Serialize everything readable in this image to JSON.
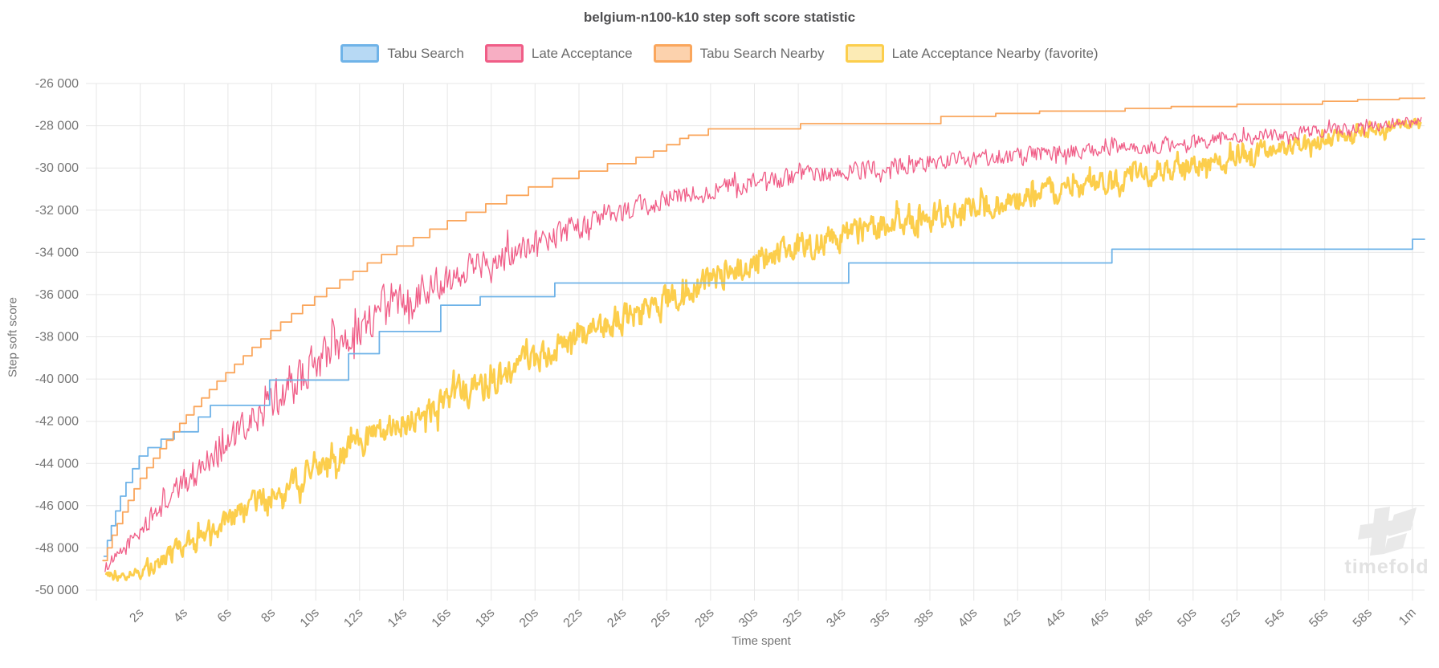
{
  "watermark": {
    "text": "timefold",
    "glyph_color": "#e9e9e9",
    "text_color": "#e2e2e2"
  },
  "chart_data": {
    "type": "line",
    "title": "belgium-n100-k10 step soft score statistic",
    "grid_color": "#e7e7e7",
    "tick_text_color": "#767676",
    "title_color": "#4f4f51",
    "background": "#ffffff",
    "legend_position": "top",
    "x_axis": {
      "title": "Time spent",
      "unit": "seconds",
      "min": 0,
      "max": 60.55,
      "ticks": [
        {
          "t": 0,
          "label": ""
        },
        {
          "t": 2,
          "label": "2s"
        },
        {
          "t": 4,
          "label": "4s"
        },
        {
          "t": 6,
          "label": "6s"
        },
        {
          "t": 8,
          "label": "8s"
        },
        {
          "t": 10,
          "label": "10s"
        },
        {
          "t": 12,
          "label": "12s"
        },
        {
          "t": 14,
          "label": "14s"
        },
        {
          "t": 16,
          "label": "16s"
        },
        {
          "t": 18,
          "label": "18s"
        },
        {
          "t": 20,
          "label": "20s"
        },
        {
          "t": 22,
          "label": "22s"
        },
        {
          "t": 24,
          "label": "24s"
        },
        {
          "t": 26,
          "label": "26s"
        },
        {
          "t": 28,
          "label": "28s"
        },
        {
          "t": 30,
          "label": "30s"
        },
        {
          "t": 32,
          "label": "32s"
        },
        {
          "t": 34,
          "label": "34s"
        },
        {
          "t": 36,
          "label": "36s"
        },
        {
          "t": 38,
          "label": "38s"
        },
        {
          "t": 40,
          "label": "40s"
        },
        {
          "t": 42,
          "label": "42s"
        },
        {
          "t": 44,
          "label": "44s"
        },
        {
          "t": 46,
          "label": "46s"
        },
        {
          "t": 48,
          "label": "48s"
        },
        {
          "t": 50,
          "label": "50s"
        },
        {
          "t": 52,
          "label": "52s"
        },
        {
          "t": 54,
          "label": "54s"
        },
        {
          "t": 56,
          "label": "56s"
        },
        {
          "t": 58,
          "label": "58s"
        },
        {
          "t": 60,
          "label": "1m"
        }
      ]
    },
    "y_axis": {
      "title": "Step soft score",
      "min": -50000,
      "max": -26000,
      "ticks": [
        {
          "value": -26000,
          "label": "-26 000"
        },
        {
          "value": -28000,
          "label": "-28 000"
        },
        {
          "value": -30000,
          "label": "-30 000"
        },
        {
          "value": -32000,
          "label": "-32 000"
        },
        {
          "value": -34000,
          "label": "-34 000"
        },
        {
          "value": -36000,
          "label": "-36 000"
        },
        {
          "value": -38000,
          "label": "-38 000"
        },
        {
          "value": -40000,
          "label": "-40 000"
        },
        {
          "value": -42000,
          "label": "-42 000"
        },
        {
          "value": -44000,
          "label": "-44 000"
        },
        {
          "value": -46000,
          "label": "-46 000"
        },
        {
          "value": -48000,
          "label": "-48 000"
        },
        {
          "value": -50000,
          "label": "-50 000"
        }
      ]
    },
    "series": [
      {
        "name": "Tabu Search",
        "type": "step",
        "z": 3,
        "color": "#6fb3e8",
        "fill_color": "#b7d9f4",
        "line_width": 1.8,
        "points": [
          [
            0.35,
            -48400
          ],
          [
            0.5,
            -47650
          ],
          [
            0.68,
            -46950
          ],
          [
            0.88,
            -46250
          ],
          [
            1.1,
            -45550
          ],
          [
            1.35,
            -44900
          ],
          [
            1.65,
            -44250
          ],
          [
            1.95,
            -43650
          ],
          [
            2.35,
            -43250
          ],
          [
            2.95,
            -42850
          ],
          [
            3.55,
            -42500
          ],
          [
            4.65,
            -41800
          ],
          [
            5.2,
            -41250
          ],
          [
            7.9,
            -40050
          ],
          [
            11.5,
            -38800
          ],
          [
            12.9,
            -37750
          ],
          [
            15.7,
            -36500
          ],
          [
            17.5,
            -36100
          ],
          [
            20.9,
            -35450
          ],
          [
            34.3,
            -34500
          ],
          [
            46.3,
            -33850
          ],
          [
            60.0,
            -33380
          ],
          [
            60.55,
            -33380
          ]
        ]
      },
      {
        "name": "Late Acceptance",
        "type": "noisy",
        "z": 2,
        "color": "#f05d87",
        "fill_color": "#f7aec3",
        "line_width": 1.3,
        "trend": [
          [
            0.4,
            -48900
          ],
          [
            1,
            -48400
          ],
          [
            2,
            -47200
          ],
          [
            3,
            -46000
          ],
          [
            4,
            -44900
          ],
          [
            5,
            -43900
          ],
          [
            6,
            -43000
          ],
          [
            7,
            -42100
          ],
          [
            8,
            -41200
          ],
          [
            9,
            -40300
          ],
          [
            10,
            -39200
          ],
          [
            11,
            -38300
          ],
          [
            12,
            -37600
          ],
          [
            13,
            -36900
          ],
          [
            14,
            -36300
          ],
          [
            15,
            -35700
          ],
          [
            16,
            -35200
          ],
          [
            17,
            -34700
          ],
          [
            18,
            -34300
          ],
          [
            19,
            -33900
          ],
          [
            20,
            -33500
          ],
          [
            22,
            -32800
          ],
          [
            24,
            -32100
          ],
          [
            26,
            -31500
          ],
          [
            28,
            -31000
          ],
          [
            30,
            -30750
          ],
          [
            32,
            -30450
          ],
          [
            34,
            -30200
          ],
          [
            36,
            -29950
          ],
          [
            38,
            -29750
          ],
          [
            40,
            -29550
          ],
          [
            42,
            -29400
          ],
          [
            44,
            -29250
          ],
          [
            46,
            -29150
          ],
          [
            48,
            -29000
          ],
          [
            50,
            -28800
          ],
          [
            52,
            -28600
          ],
          [
            54,
            -28450
          ],
          [
            56,
            -28250
          ],
          [
            58,
            -28050
          ],
          [
            59.5,
            -27850
          ],
          [
            60.4,
            -27800
          ]
        ],
        "noise_amplitude": [
          [
            0.4,
            350
          ],
          [
            1,
            400
          ],
          [
            2,
            550
          ],
          [
            4,
            800
          ],
          [
            6,
            900
          ],
          [
            8,
            1050
          ],
          [
            10,
            1200
          ],
          [
            13,
            1100
          ],
          [
            16,
            950
          ],
          [
            19,
            800
          ],
          [
            22,
            700
          ],
          [
            26,
            600
          ],
          [
            30,
            550
          ],
          [
            34,
            550
          ],
          [
            38,
            500
          ],
          [
            42,
            500
          ],
          [
            46,
            450
          ],
          [
            50,
            450
          ],
          [
            54,
            400
          ],
          [
            58,
            350
          ],
          [
            60.4,
            300
          ]
        ]
      },
      {
        "name": "Tabu Search Nearby",
        "type": "step",
        "z": 4,
        "color": "#faa65c",
        "fill_color": "#fcd2ad",
        "line_width": 1.8,
        "points": [
          [
            0.3,
            -48600
          ],
          [
            0.5,
            -48000
          ],
          [
            0.72,
            -47400
          ],
          [
            0.95,
            -46850
          ],
          [
            1.2,
            -46300
          ],
          [
            1.45,
            -45750
          ],
          [
            1.72,
            -45200
          ],
          [
            2.0,
            -44700
          ],
          [
            2.3,
            -44200
          ],
          [
            2.6,
            -43750
          ],
          [
            2.9,
            -43300
          ],
          [
            3.2,
            -42900
          ],
          [
            3.5,
            -42500
          ],
          [
            3.8,
            -42100
          ],
          [
            4.1,
            -41700
          ],
          [
            4.45,
            -41300
          ],
          [
            4.8,
            -40900
          ],
          [
            5.15,
            -40500
          ],
          [
            5.5,
            -40100
          ],
          [
            5.9,
            -39700
          ],
          [
            6.3,
            -39300
          ],
          [
            6.7,
            -38900
          ],
          [
            7.1,
            -38500
          ],
          [
            7.5,
            -38100
          ],
          [
            7.95,
            -37700
          ],
          [
            8.4,
            -37300
          ],
          [
            8.9,
            -36900
          ],
          [
            9.4,
            -36500
          ],
          [
            9.95,
            -36100
          ],
          [
            10.5,
            -35700
          ],
          [
            11.1,
            -35300
          ],
          [
            11.7,
            -34900
          ],
          [
            12.35,
            -34500
          ],
          [
            13.0,
            -34100
          ],
          [
            13.7,
            -33700
          ],
          [
            14.45,
            -33300
          ],
          [
            15.2,
            -32900
          ],
          [
            16.0,
            -32500
          ],
          [
            16.85,
            -32100
          ],
          [
            17.75,
            -31700
          ],
          [
            18.7,
            -31300
          ],
          [
            19.7,
            -30900
          ],
          [
            20.8,
            -30500
          ],
          [
            22.0,
            -30150
          ],
          [
            23.3,
            -29800
          ],
          [
            24.6,
            -29500
          ],
          [
            25.4,
            -29200
          ],
          [
            26.0,
            -28900
          ],
          [
            26.6,
            -28600
          ],
          [
            27.0,
            -28450
          ],
          [
            27.9,
            -28150
          ],
          [
            32.1,
            -27900
          ],
          [
            38.5,
            -27560
          ],
          [
            41.0,
            -27420
          ],
          [
            43.0,
            -27310
          ],
          [
            46.9,
            -27180
          ],
          [
            49.0,
            -27090
          ],
          [
            52.0,
            -26980
          ],
          [
            55.9,
            -26840
          ],
          [
            57.5,
            -26760
          ],
          [
            59.4,
            -26700
          ],
          [
            60.55,
            -26680
          ]
        ]
      },
      {
        "name": "Late Acceptance Nearby (favorite)",
        "type": "noisy",
        "z": 1,
        "color": "#fcce4c",
        "fill_color": "#fcebb5",
        "line_width": 2.8,
        "trend": [
          [
            0.45,
            -49200
          ],
          [
            1,
            -49350
          ],
          [
            2,
            -49100
          ],
          [
            3,
            -48500
          ],
          [
            4,
            -47900
          ],
          [
            5,
            -47300
          ],
          [
            6,
            -46700
          ],
          [
            7,
            -46100
          ],
          [
            8,
            -45500
          ],
          [
            9,
            -44900
          ],
          [
            10,
            -44300
          ],
          [
            11,
            -43700
          ],
          [
            12,
            -43100
          ],
          [
            13,
            -42600
          ],
          [
            14,
            -42100
          ],
          [
            15,
            -41600
          ],
          [
            16,
            -41100
          ],
          [
            17,
            -40600
          ],
          [
            18,
            -40100
          ],
          [
            19,
            -39600
          ],
          [
            20,
            -39100
          ],
          [
            21,
            -38600
          ],
          [
            22,
            -38100
          ],
          [
            23,
            -37600
          ],
          [
            24,
            -37100
          ],
          [
            25,
            -36650
          ],
          [
            26,
            -36200
          ],
          [
            27,
            -35750
          ],
          [
            28,
            -35300
          ],
          [
            29,
            -34900
          ],
          [
            30,
            -34500
          ],
          [
            31,
            -34150
          ],
          [
            32,
            -33800
          ],
          [
            33,
            -33500
          ],
          [
            34,
            -33250
          ],
          [
            35,
            -33000
          ],
          [
            36,
            -32750
          ],
          [
            38,
            -32300
          ],
          [
            40,
            -31900
          ],
          [
            42,
            -31500
          ],
          [
            44,
            -31100
          ],
          [
            46,
            -30700
          ],
          [
            48,
            -30300
          ],
          [
            50,
            -29900
          ],
          [
            52,
            -29500
          ],
          [
            54,
            -29100
          ],
          [
            56,
            -28700
          ],
          [
            58,
            -28300
          ],
          [
            59.5,
            -27950
          ],
          [
            60.4,
            -27850
          ]
        ],
        "noise_amplitude": [
          [
            0.45,
            250
          ],
          [
            1,
            300
          ],
          [
            2,
            500
          ],
          [
            3,
            700
          ],
          [
            4,
            800
          ],
          [
            6,
            900
          ],
          [
            8,
            1000
          ],
          [
            10,
            1000
          ],
          [
            12,
            1000
          ],
          [
            14,
            1050
          ],
          [
            16,
            1050
          ],
          [
            18,
            1050
          ],
          [
            20,
            1050
          ],
          [
            24,
            1050
          ],
          [
            28,
            1000
          ],
          [
            32,
            1000
          ],
          [
            36,
            950
          ],
          [
            40,
            900
          ],
          [
            44,
            900
          ],
          [
            48,
            850
          ],
          [
            52,
            750
          ],
          [
            56,
            600
          ],
          [
            58,
            500
          ],
          [
            60,
            400
          ],
          [
            60.4,
            350
          ]
        ]
      }
    ]
  }
}
